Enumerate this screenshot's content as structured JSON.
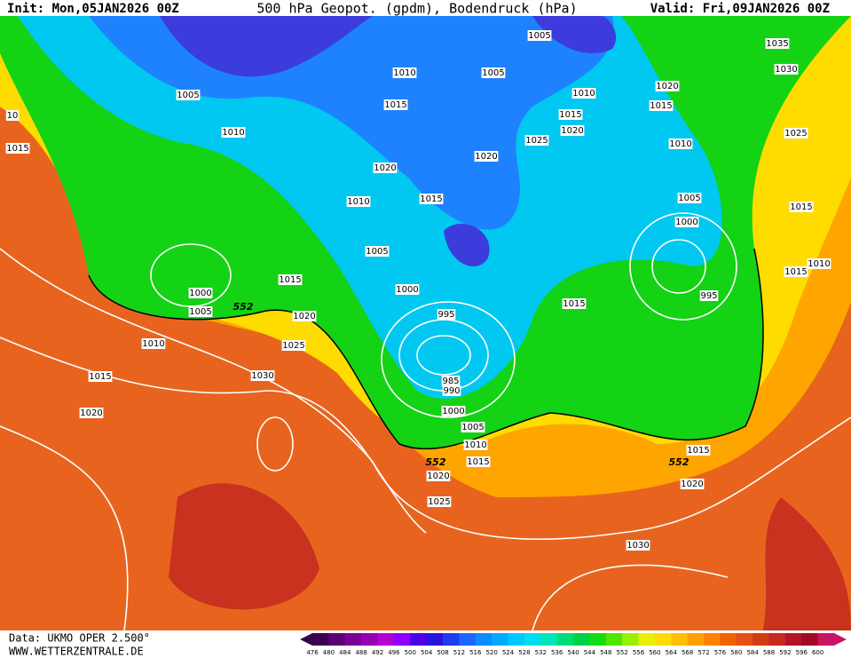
{
  "header": {
    "init": "Init: Mon,05JAN2026 00Z",
    "title": "500 hPa Geopot. (gpdm), Bodendruck (hPa)",
    "valid": "Valid: Fri,09JAN2026 00Z"
  },
  "isobar_labels": [
    1005,
    1035,
    1010,
    1005,
    1030,
    1005,
    1020,
    1010,
    10,
    1015,
    1015,
    1015,
    1010,
    1020,
    1025,
    1025,
    1015,
    1010,
    1020,
    1020,
    1010,
    1015,
    1005,
    1015,
    1000,
    1005,
    1010,
    1015,
    1015,
    1000,
    1000,
    995,
    1015,
    1005,
    1020,
    995,
    1010,
    1025,
    1015,
    1030,
    985,
    990,
    1020,
    1000,
    1005,
    1010,
    1015,
    1020,
    1015,
    1020,
    1025,
    1030
  ],
  "height_labels": [
    552,
    552,
    552
  ],
  "footer": {
    "data": "Data: UKMO OPER 2.500°",
    "site": "WWW.WETTERZENTRALE.DE"
  },
  "scale": {
    "values": [
      476,
      480,
      484,
      488,
      492,
      496,
      500,
      504,
      508,
      512,
      516,
      520,
      524,
      528,
      532,
      536,
      540,
      544,
      548,
      552,
      556,
      560,
      564,
      568,
      572,
      576,
      580,
      584,
      588,
      592,
      596,
      600
    ],
    "colors": [
      "#3c0050",
      "#5a0078",
      "#7a0096",
      "#9600b4",
      "#b400d2",
      "#8c00ff",
      "#5000e6",
      "#2814dc",
      "#1e3cf0",
      "#1e64ff",
      "#0a8cff",
      "#00aaff",
      "#00c8ff",
      "#00dcf0",
      "#00e6b4",
      "#00dc78",
      "#00d246",
      "#14dc14",
      "#50e600",
      "#96f000",
      "#e6f000",
      "#ffdc00",
      "#ffbe00",
      "#ffa000",
      "#ff8200",
      "#f06400",
      "#e65014",
      "#d23c14",
      "#c8281e",
      "#b41428",
      "#a00a28",
      "#c81464"
    ]
  }
}
